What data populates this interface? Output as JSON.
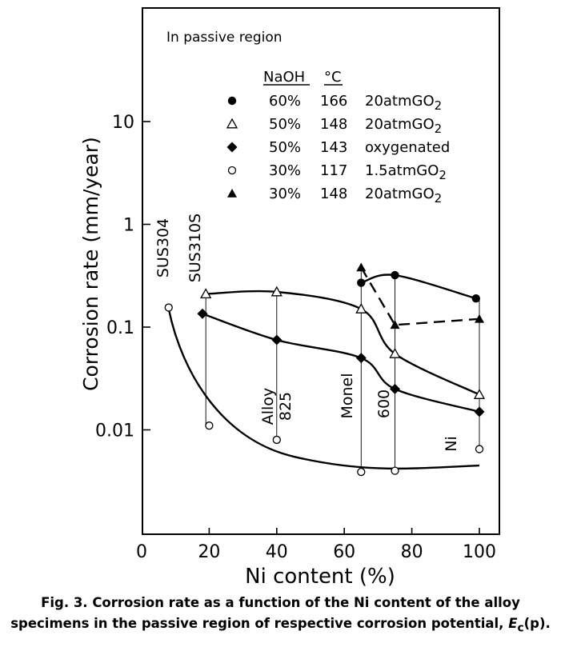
{
  "chart_data": {
    "type": "scatter",
    "xlabel": "Ni content (%)",
    "ylabel": "Corrosion rate (mm/year)",
    "xlim": [
      0,
      110
    ],
    "ylim": [
      0.001,
      100
    ],
    "yscale": "log",
    "x_ticks": [
      0,
      20,
      40,
      60,
      80,
      100
    ],
    "y_ticks": [
      {
        "value": 0.01,
        "label": "0.01"
      },
      {
        "value": 0.1,
        "label": "0.1"
      },
      {
        "value": 1,
        "label": "1"
      },
      {
        "value": 10,
        "label": "10"
      }
    ],
    "annotation": "In passive region",
    "legend": {
      "placement": "top-right",
      "headers": [
        "NaOH",
        "°C"
      ],
      "entries": [
        {
          "marker": "filled-circle",
          "naoh": "60%",
          "temp": "166",
          "condition": "20atmGO",
          "sub": "2"
        },
        {
          "marker": "open-triangle",
          "naoh": "50%",
          "temp": "148",
          "condition": "20atmGO",
          "sub": "2"
        },
        {
          "marker": "filled-diamond",
          "naoh": "50%",
          "temp": "143",
          "condition": "oxygenated",
          "sub": ""
        },
        {
          "marker": "open-circle",
          "naoh": "30%",
          "temp": "117",
          "condition": "1.5atmGO",
          "sub": "2"
        },
        {
          "marker": "filled-triangle",
          "naoh": "30%",
          "temp": "148",
          "condition": "20atmGO",
          "sub": "2"
        }
      ]
    },
    "alloys": [
      {
        "label": "SUS304",
        "x": 8
      },
      {
        "label": "SUS310S",
        "x": 19
      },
      {
        "label": "Alloy",
        "label2": "825",
        "x": 40
      },
      {
        "label": "Monel",
        "x": 65
      },
      {
        "label": "600",
        "x": 75
      },
      {
        "label": "Ni",
        "x": 100
      }
    ],
    "series": [
      {
        "marker": "filled-circle",
        "line": "solid",
        "points": [
          [
            65,
            0.27
          ],
          [
            75,
            0.32
          ],
          [
            99,
            0.19
          ]
        ]
      },
      {
        "marker": "open-triangle",
        "line": "solid",
        "points": [
          [
            19,
            0.21
          ],
          [
            40,
            0.22
          ],
          [
            65,
            0.15
          ],
          [
            75,
            0.055
          ],
          [
            100,
            0.022
          ]
        ]
      },
      {
        "marker": "filled-diamond",
        "line": "solid",
        "points": [
          [
            18,
            0.135
          ],
          [
            40,
            0.075
          ],
          [
            65,
            0.05
          ],
          [
            75,
            0.025
          ],
          [
            100,
            0.015
          ]
        ]
      },
      {
        "marker": "open-circle",
        "line": "solid",
        "points": [
          [
            8,
            0.155
          ],
          [
            20,
            0.011
          ],
          [
            40,
            0.008
          ],
          [
            65,
            0.0039
          ],
          [
            75,
            0.004
          ],
          [
            100,
            0.0065
          ]
        ]
      },
      {
        "marker": "filled-triangle",
        "line": "dashed",
        "points": [
          [
            65,
            0.38
          ],
          [
            75,
            0.105
          ],
          [
            100,
            0.12
          ]
        ]
      }
    ]
  },
  "caption": {
    "line1": "Fig. 3. Corrosion rate as a function of the Ni content of the alloy",
    "line2_prefix": "specimens in the passive region of respective corrosion potential, ",
    "line2_symbol": "E",
    "line2_sub": "c",
    "line2_suffix": "(p)."
  }
}
